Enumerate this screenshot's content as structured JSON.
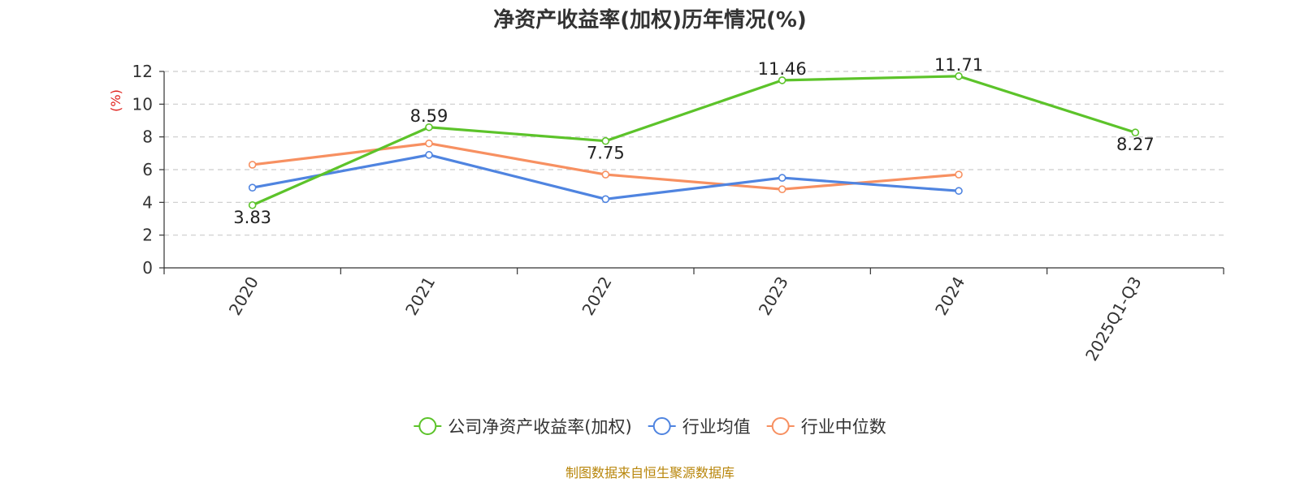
{
  "chart_data": {
    "type": "line",
    "title": "净资产收益率(加权)历年情况(%)",
    "ylabel": "(%)",
    "categories": [
      "2020",
      "2021",
      "2022",
      "2023",
      "2024",
      "2025Q1-Q3"
    ],
    "ylim": [
      0,
      12
    ],
    "yticks": [
      "0",
      "2",
      "4",
      "6",
      "8",
      "10",
      "12"
    ],
    "grid": true,
    "legend_position": "bottom-center",
    "series": [
      {
        "name": "公司净资产收益率(加权)",
        "color": "#5cc32a",
        "values": [
          3.83,
          8.59,
          7.75,
          11.46,
          11.71,
          8.27
        ],
        "labels": [
          "3.83",
          "8.59",
          "7.75",
          "11.46",
          "11.71",
          "8.27"
        ]
      },
      {
        "name": "行业均值",
        "color": "#4f84e0",
        "values": [
          4.9,
          6.9,
          4.2,
          5.5,
          4.7,
          null
        ]
      },
      {
        "name": "行业中位数",
        "color": "#f79061",
        "values": [
          6.3,
          7.6,
          5.7,
          4.8,
          5.7,
          null
        ]
      }
    ]
  },
  "footer": {
    "source": "制图数据来自恒生聚源数据库"
  },
  "colors": {
    "ylabel": "#e0201b",
    "source": "#b8860b",
    "grid": "#cccccc",
    "axis": "#333333"
  }
}
